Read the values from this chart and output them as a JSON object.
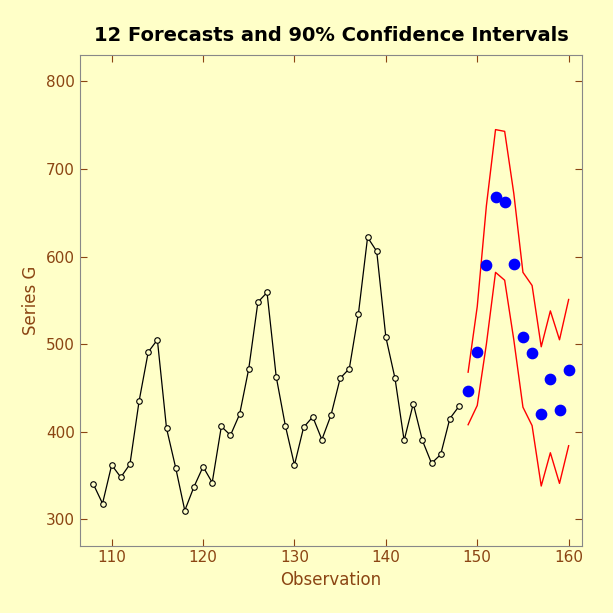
{
  "title": "12 Forecasts and 90% Confidence Intervals",
  "xlabel": "Observation",
  "ylabel": "Series G",
  "bg_color": "#FFFFC8",
  "plot_bg_color": "#FFFFC8",
  "xlim": [
    106.5,
    161.5
  ],
  "ylim": [
    270,
    830
  ],
  "xticks": [
    110,
    120,
    130,
    140,
    150,
    160
  ],
  "yticks": [
    300,
    400,
    500,
    600,
    700,
    800
  ],
  "obs_x": [
    108,
    109,
    110,
    111,
    112,
    113,
    114,
    115,
    116,
    117,
    118,
    119,
    120,
    121,
    122,
    123,
    124,
    125,
    126,
    127,
    128,
    129,
    130,
    131,
    132,
    133,
    134,
    135,
    136,
    137,
    138,
    139,
    140,
    141,
    142,
    143,
    144,
    145,
    146,
    147,
    148
  ],
  "obs_y": [
    340,
    318,
    362,
    348,
    363,
    435,
    491,
    505,
    404,
    359,
    310,
    337,
    360,
    342,
    406,
    396,
    420,
    472,
    548,
    559,
    463,
    407,
    362,
    405,
    417,
    391,
    419,
    461,
    472,
    535,
    622,
    606,
    508,
    461,
    390,
    432,
    390,
    364,
    374,
    415,
    429
  ],
  "forecast_x": [
    149,
    150,
    151,
    152,
    153,
    154,
    155,
    156,
    157,
    158,
    159,
    160
  ],
  "forecast_y": [
    447,
    491,
    590,
    668,
    662,
    591,
    508,
    490,
    420,
    460,
    425,
    471
  ],
  "upper_x": [
    149,
    150,
    151,
    152,
    153,
    154,
    155,
    156,
    157,
    158,
    159,
    160
  ],
  "upper_y": [
    468,
    543,
    658,
    745,
    743,
    672,
    582,
    567,
    497,
    538,
    505,
    551
  ],
  "lower_x": [
    149,
    150,
    151,
    152,
    153,
    154,
    155,
    156,
    157,
    158,
    159,
    160
  ],
  "lower_y": [
    408,
    430,
    500,
    582,
    573,
    505,
    428,
    407,
    338,
    376,
    341,
    384
  ],
  "obs_color": "#000000",
  "forecast_color": "#0000FF",
  "ci_color": "#FF0000",
  "label_color": "#8B4513",
  "tick_color": "#8B4513",
  "title_color": "#000000",
  "obs_marker_size": 4,
  "forecast_marker_size": 55,
  "title_fontsize": 14,
  "label_fontsize": 12,
  "tick_fontsize": 11,
  "title_fontweight": "bold"
}
